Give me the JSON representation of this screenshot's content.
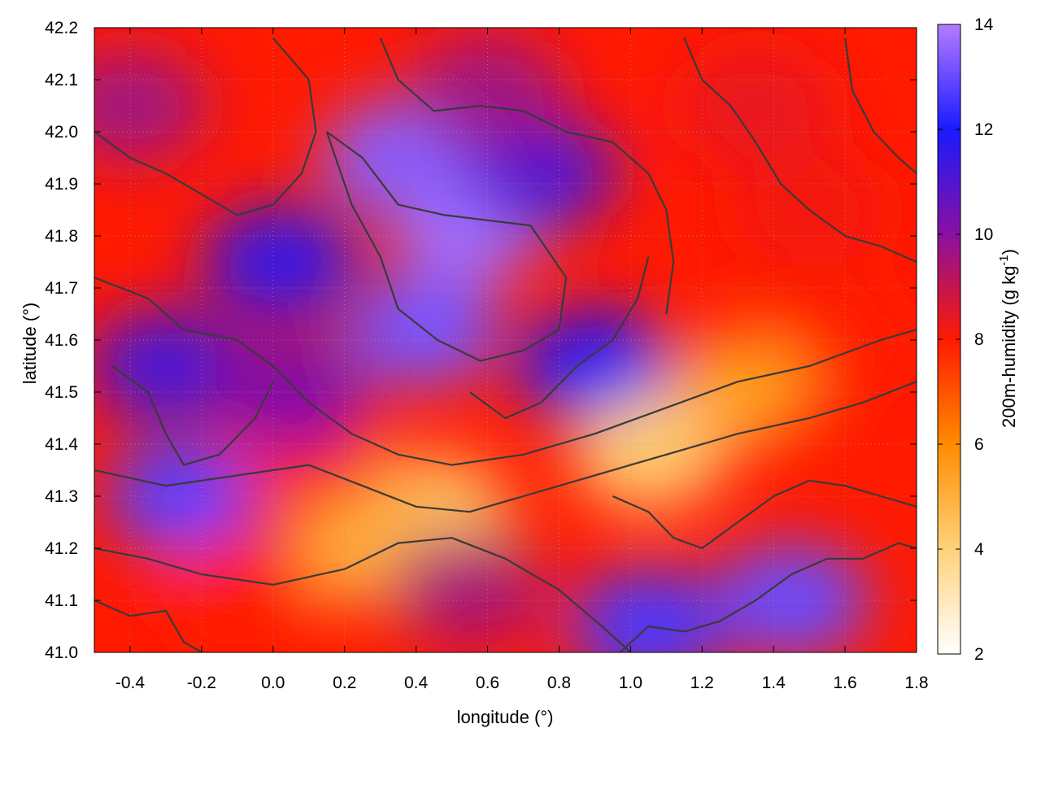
{
  "chart_data": {
    "type": "heatmap",
    "title": "",
    "xlabel": "longitude (°)",
    "ylabel": "latitude (°)",
    "colorbar_label_main": "200m-humidity (g kg",
    "colorbar_label_exp": "-1",
    "colorbar_label_close": ")",
    "xlim": [
      -0.5,
      1.8
    ],
    "ylim": [
      41.0,
      42.2
    ],
    "xticks": [
      "-0.4",
      "-0.2",
      "0.0",
      "0.2",
      "0.4",
      "0.6",
      "0.8",
      "1.0",
      "1.2",
      "1.4",
      "1.6",
      "1.8"
    ],
    "xtick_values": [
      -0.4,
      -0.2,
      0.0,
      0.2,
      0.4,
      0.6,
      0.8,
      1.0,
      1.2,
      1.4,
      1.6,
      1.8
    ],
    "yticks": [
      "41.0",
      "41.1",
      "41.2",
      "41.3",
      "41.4",
      "41.5",
      "41.6",
      "41.7",
      "41.8",
      "41.9",
      "42.0",
      "42.1",
      "42.2"
    ],
    "ytick_values": [
      41.0,
      41.1,
      41.2,
      41.3,
      41.4,
      41.5,
      41.6,
      41.7,
      41.8,
      41.9,
      42.0,
      42.1,
      42.2
    ],
    "color_range": [
      2,
      14
    ],
    "colorbar_ticks": [
      "2",
      "4",
      "6",
      "8",
      "10",
      "12",
      "14"
    ],
    "colorbar_tick_values": [
      2,
      4,
      6,
      8,
      10,
      12,
      14
    ],
    "colormap_stops": [
      {
        "value": 2,
        "color": "#ffffff"
      },
      {
        "value": 4,
        "color": "#ffd27a"
      },
      {
        "value": 6,
        "color": "#ff8c00"
      },
      {
        "value": 8,
        "color": "#ff1a00"
      },
      {
        "value": 10,
        "color": "#8a10a0"
      },
      {
        "value": 12,
        "color": "#1a1aff"
      },
      {
        "value": 14,
        "color": "#b57bff"
      }
    ],
    "grid": true,
    "field_regions": [
      {
        "lon": 0.55,
        "lat": 41.82,
        "humidity": 13.8
      },
      {
        "lon": 0.35,
        "lat": 41.95,
        "humidity": 13.4
      },
      {
        "lon": 0.42,
        "lat": 41.62,
        "humidity": 13.2
      },
      {
        "lon": 0.02,
        "lat": 41.75,
        "humidity": 11.5
      },
      {
        "lon": -0.3,
        "lat": 41.55,
        "humidity": 11.2
      },
      {
        "lon": -0.25,
        "lat": 41.3,
        "humidity": 12.8
      },
      {
        "lon": 1.45,
        "lat": 41.1,
        "humidity": 13.0
      },
      {
        "lon": 1.05,
        "lat": 41.05,
        "humidity": 12.6
      },
      {
        "lon": 0.9,
        "lat": 41.55,
        "humidity": 11.8
      },
      {
        "lon": 0.75,
        "lat": 41.92,
        "humidity": 11.0
      },
      {
        "lon": 0.6,
        "lat": 42.08,
        "humidity": 9.6
      },
      {
        "lon": 1.5,
        "lat": 41.85,
        "humidity": 8.2
      },
      {
        "lon": 1.35,
        "lat": 42.05,
        "humidity": 8.4
      },
      {
        "lon": 1.55,
        "lat": 41.6,
        "humidity": 8.0
      },
      {
        "lon": 1.3,
        "lat": 41.5,
        "humidity": 5.5
      },
      {
        "lon": 1.05,
        "lat": 41.38,
        "humidity": 4.2
      },
      {
        "lon": 0.45,
        "lat": 41.27,
        "humidity": 4.4
      },
      {
        "lon": 0.25,
        "lat": 41.2,
        "humidity": 5.0
      },
      {
        "lon": 0.1,
        "lat": 41.38,
        "humidity": 8.0
      },
      {
        "lon": -0.1,
        "lat": 41.12,
        "humidity": 8.0
      },
      {
        "lon": 0.55,
        "lat": 41.12,
        "humidity": 9.5
      },
      {
        "lon": 0.05,
        "lat": 41.5,
        "humidity": 10.2
      },
      {
        "lon": -0.4,
        "lat": 42.05,
        "humidity": 9.6
      }
    ],
    "contours": [
      [
        [
          -0.5,
          41.72
        ],
        [
          -0.35,
          41.68
        ],
        [
          -0.25,
          41.62
        ],
        [
          -0.1,
          41.6
        ],
        [
          0.0,
          41.55
        ],
        [
          0.1,
          41.48
        ],
        [
          0.22,
          41.42
        ],
        [
          0.35,
          41.38
        ],
        [
          0.5,
          41.36
        ],
        [
          0.7,
          41.38
        ],
        [
          0.9,
          41.42
        ],
        [
          1.1,
          41.47
        ],
        [
          1.3,
          41.52
        ],
        [
          1.5,
          41.55
        ],
        [
          1.7,
          41.6
        ],
        [
          1.8,
          41.62
        ]
      ],
      [
        [
          -0.5,
          41.35
        ],
        [
          -0.3,
          41.32
        ],
        [
          -0.1,
          41.34
        ],
        [
          0.1,
          41.36
        ],
        [
          0.25,
          41.32
        ],
        [
          0.4,
          41.28
        ],
        [
          0.55,
          41.27
        ],
        [
          0.7,
          41.3
        ],
        [
          0.85,
          41.33
        ],
        [
          1.0,
          41.36
        ],
        [
          1.15,
          41.39
        ],
        [
          1.3,
          41.42
        ],
        [
          1.5,
          41.45
        ],
        [
          1.65,
          41.48
        ],
        [
          1.8,
          41.52
        ]
      ],
      [
        [
          -0.5,
          41.2
        ],
        [
          -0.35,
          41.18
        ],
        [
          -0.2,
          41.15
        ],
        [
          0.0,
          41.13
        ],
        [
          0.2,
          41.16
        ],
        [
          0.35,
          41.21
        ],
        [
          0.5,
          41.22
        ],
        [
          0.65,
          41.18
        ],
        [
          0.8,
          41.12
        ],
        [
          0.92,
          41.05
        ],
        [
          1.0,
          41.0
        ]
      ],
      [
        [
          0.97,
          41.0
        ],
        [
          1.05,
          41.05
        ],
        [
          1.15,
          41.04
        ],
        [
          1.25,
          41.06
        ],
        [
          1.35,
          41.1
        ],
        [
          1.45,
          41.15
        ],
        [
          1.55,
          41.18
        ],
        [
          1.65,
          41.18
        ],
        [
          1.75,
          41.21
        ],
        [
          1.8,
          41.2
        ]
      ],
      [
        [
          0.15,
          42.0
        ],
        [
          0.25,
          41.95
        ],
        [
          0.35,
          41.86
        ],
        [
          0.48,
          41.84
        ],
        [
          0.6,
          41.83
        ],
        [
          0.72,
          41.82
        ],
        [
          0.82,
          41.72
        ],
        [
          0.8,
          41.62
        ],
        [
          0.7,
          41.58
        ],
        [
          0.58,
          41.56
        ],
        [
          0.46,
          41.6
        ],
        [
          0.35,
          41.66
        ],
        [
          0.3,
          41.76
        ],
        [
          0.22,
          41.86
        ],
        [
          0.15,
          42.0
        ]
      ],
      [
        [
          -0.5,
          42.0
        ],
        [
          -0.4,
          41.95
        ],
        [
          -0.3,
          41.92
        ],
        [
          -0.2,
          41.88
        ],
        [
          -0.1,
          41.84
        ],
        [
          0.0,
          41.86
        ],
        [
          0.08,
          41.92
        ],
        [
          0.12,
          42.0
        ],
        [
          0.1,
          42.1
        ],
        [
          0.0,
          42.18
        ]
      ],
      [
        [
          0.3,
          42.18
        ],
        [
          0.35,
          42.1
        ],
        [
          0.45,
          42.04
        ],
        [
          0.58,
          42.05
        ],
        [
          0.7,
          42.04
        ],
        [
          0.82,
          42.0
        ],
        [
          0.95,
          41.98
        ],
        [
          1.05,
          41.92
        ],
        [
          1.1,
          41.85
        ],
        [
          1.12,
          41.75
        ],
        [
          1.1,
          41.65
        ]
      ],
      [
        [
          1.15,
          42.18
        ],
        [
          1.2,
          42.1
        ],
        [
          1.28,
          42.05
        ],
        [
          1.35,
          41.98
        ],
        [
          1.42,
          41.9
        ],
        [
          1.5,
          41.85
        ],
        [
          1.6,
          41.8
        ],
        [
          1.7,
          41.78
        ],
        [
          1.8,
          41.75
        ]
      ],
      [
        [
          1.6,
          42.18
        ],
        [
          1.62,
          42.08
        ],
        [
          1.68,
          42.0
        ],
        [
          1.75,
          41.95
        ],
        [
          1.8,
          41.92
        ]
      ],
      [
        [
          -0.45,
          41.55
        ],
        [
          -0.35,
          41.5
        ],
        [
          -0.3,
          41.42
        ],
        [
          -0.25,
          41.36
        ],
        [
          -0.15,
          41.38
        ],
        [
          -0.05,
          41.45
        ],
        [
          0.0,
          41.52
        ]
      ],
      [
        [
          -0.5,
          41.1
        ],
        [
          -0.4,
          41.07
        ],
        [
          -0.3,
          41.08
        ],
        [
          -0.25,
          41.02
        ],
        [
          -0.2,
          41.0
        ]
      ],
      [
        [
          0.95,
          41.3
        ],
        [
          1.05,
          41.27
        ],
        [
          1.12,
          41.22
        ],
        [
          1.2,
          41.2
        ],
        [
          1.3,
          41.25
        ],
        [
          1.4,
          41.3
        ],
        [
          1.5,
          41.33
        ],
        [
          1.6,
          41.32
        ],
        [
          1.7,
          41.3
        ],
        [
          1.8,
          41.28
        ]
      ],
      [
        [
          0.55,
          41.5
        ],
        [
          0.65,
          41.45
        ],
        [
          0.75,
          41.48
        ],
        [
          0.85,
          41.55
        ],
        [
          0.95,
          41.6
        ],
        [
          1.02,
          41.68
        ],
        [
          1.05,
          41.76
        ]
      ]
    ]
  }
}
